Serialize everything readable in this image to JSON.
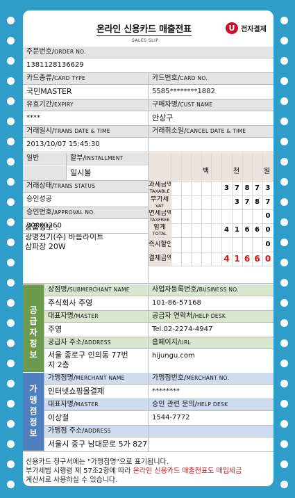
{
  "title": "온라인 신용카드 매출전표",
  "subtitle": "SALES SLIP",
  "logo": {
    "mark": "U",
    "text": "전자결제"
  },
  "order": {
    "label": "주문번호/",
    "label_en": "ORDER NO.",
    "value": "1381128136629"
  },
  "card_type": {
    "label": "카드종류/",
    "label_en": "CARD TYPE",
    "value": "국민MASTER"
  },
  "card_no": {
    "label": "카드번호/",
    "label_en": "CARD NO.",
    "value": "5585********1882"
  },
  "expiry": {
    "label": "유효기간/",
    "label_en": "EXPIRY",
    "value": "****"
  },
  "cust": {
    "label": "구매자명/",
    "label_en": "CUST NAME",
    "value": "안상구"
  },
  "trans_date": {
    "label": "거래일시/",
    "label_en": "TRANS DATE & TIME",
    "value": "2013/10/07 15:45:30"
  },
  "cancel_date": {
    "label": "거래취소일/",
    "label_en": "CANCEL DATE & TIME",
    "value": ""
  },
  "plan": {
    "general": "일반",
    "label": "할부/",
    "label_en": "INSTALLMENT",
    "value": "일시불"
  },
  "status": {
    "label": "거래상태/",
    "label_en": "TRANS STATUS",
    "value": "승인성공"
  },
  "approval": {
    "label": "승인번호/",
    "label_en": "APPROVAL NO.",
    "value": "30001260"
  },
  "product": {
    "line1": "상품정보 :",
    "line2": "광명전기(주) 바름라이트",
    "line3": "삼파장 20W"
  },
  "units": {
    "baek": "백",
    "cheon": "천",
    "won": "원"
  },
  "amounts": {
    "taxable": {
      "label": "과세금액",
      "en": "TAXABLE",
      "digits": [
        "3",
        "7",
        "8",
        "7",
        "3"
      ]
    },
    "vat": {
      "label": "부가세",
      "en": "VAT",
      "digits": [
        "3",
        "7",
        "8",
        "7"
      ]
    },
    "taxfree": {
      "label": "면세금액",
      "en": "TAXFREE",
      "digits": [
        "0"
      ]
    },
    "total": {
      "label": "합계",
      "en": "TOTAL",
      "digits": [
        "4",
        "1",
        "6",
        "6",
        "0"
      ]
    },
    "discount": {
      "label": "즉시할인",
      "digits": [
        "0"
      ]
    },
    "paid": {
      "label": "결제금액",
      "digits": [
        "4",
        "1",
        "6",
        "6",
        "0"
      ]
    }
  },
  "supplier": {
    "side": "공급자정보",
    "name_label": "상점명/",
    "name_en": "SUBMERCHANT NAME",
    "name": "주식회사 주영",
    "biz_label": "사업자등록번호/",
    "biz_en": "BUSINESS NO.",
    "biz": "101-86-57168",
    "master_label": "대표자명/",
    "master_en": "MASTER",
    "master": "주영",
    "desk_label": "공급자 연락처/",
    "desk_en": "HELP DESK",
    "desk": "Tel.02-2274-4947",
    "addr_label": "공급자 주소/",
    "addr_en": "ADDRESS",
    "addr1": "서울 종로구 인의동 77번",
    "addr2": "지 2층",
    "url_label": "홈페이지/",
    "url_en": "URL",
    "url": "hijungu.com"
  },
  "merchant": {
    "side": "가맹점정보",
    "name_label": "가맹점명/",
    "name_en": "MERCHANT NAME",
    "name": "인터넷쇼핑몰결제",
    "no_label": "가맹점번호/",
    "no_en": "MERCHANT NO.",
    "no": "********",
    "master_label": "대표자명/",
    "master_en": "MASTER",
    "master": "이상철",
    "desk_label": "승인 관련 문의/",
    "desk_en": "HELP DESK",
    "desk": "1544-7772",
    "addr_label": "가맹점 주소/",
    "addr_en": "ADDRESS",
    "addr": "서울시 중구 남대문로 5가 827"
  },
  "footer": {
    "line1": "신용카드 청구서에는 \"가맹점명\"으로 표기됩니다.",
    "line2a": "부가세법 시행령 제 57조2항에 따라 ",
    "line2b": "온라인 신용카드 매출전표도 매입세금",
    "line3": "계산서로 사용하실 수 있습니다."
  },
  "colors": {
    "background": "#2f9dc9",
    "supplier_side": "#6e9a4e",
    "supplier_label": "#d8e6cd",
    "merchant_side": "#4f7fbf",
    "merchant_label": "#cfdcee",
    "red": "#e01010"
  }
}
